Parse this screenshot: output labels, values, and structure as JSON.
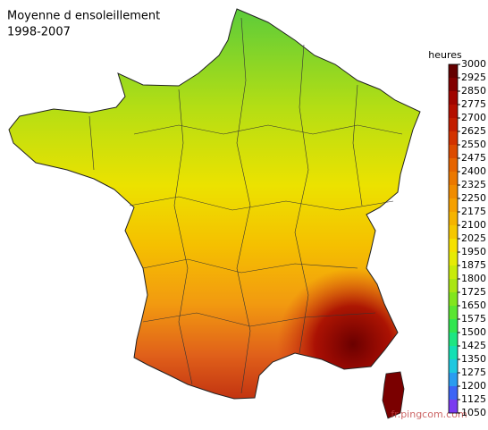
{
  "title": "Moyenne d ensoleillement",
  "subtitle": "1998-2007",
  "legend": {
    "title": "heures",
    "ticks": [
      1050,
      1125,
      1200,
      1275,
      1350,
      1425,
      1500,
      1575,
      1650,
      1725,
      1800,
      1875,
      1950,
      2025,
      2100,
      2175,
      2250,
      2325,
      2400,
      2475,
      2550,
      2625,
      2700,
      2775,
      2850,
      2925,
      3000
    ],
    "colors": [
      "#7a3cf0",
      "#3c64f5",
      "#2a9cf0",
      "#1ec8e0",
      "#14e0b4",
      "#1ee682",
      "#32e650",
      "#5ae632",
      "#82e61e",
      "#aae614",
      "#c8eb0a",
      "#e6eb05",
      "#f5e100",
      "#f5c800",
      "#f5b400",
      "#f5a000",
      "#f08c00",
      "#eb7800",
      "#e66400",
      "#dc4b00",
      "#d23200",
      "#c31e00",
      "#b40f00",
      "#a00500",
      "#820000",
      "#640000"
    ]
  },
  "watermark": "fr.pingcom.com"
}
